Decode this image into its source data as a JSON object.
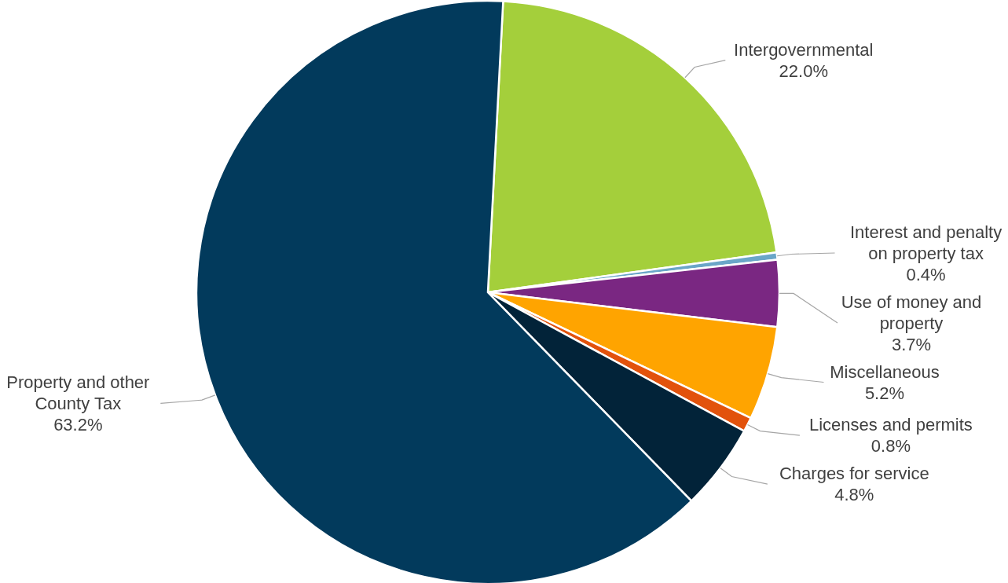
{
  "chart_data": {
    "type": "pie",
    "categories": [
      "Intergovernmental",
      "Interest and penalty on property tax",
      "Use of money and property",
      "Miscellaneous",
      "Licenses and permits",
      "Charges for service",
      "Property and other County Tax"
    ],
    "values": [
      22.0,
      0.4,
      3.7,
      5.2,
      0.8,
      4.8,
      63.2
    ],
    "value_labels": [
      "22.0%",
      "0.4%",
      "3.7%",
      "5.2%",
      "0.8%",
      "4.8%",
      "63.2%"
    ],
    "colors": [
      "#a4cf3b",
      "#6aa6c8",
      "#7a2782",
      "#ffa400",
      "#e2520c",
      "#022339",
      "#023a5c"
    ]
  }
}
